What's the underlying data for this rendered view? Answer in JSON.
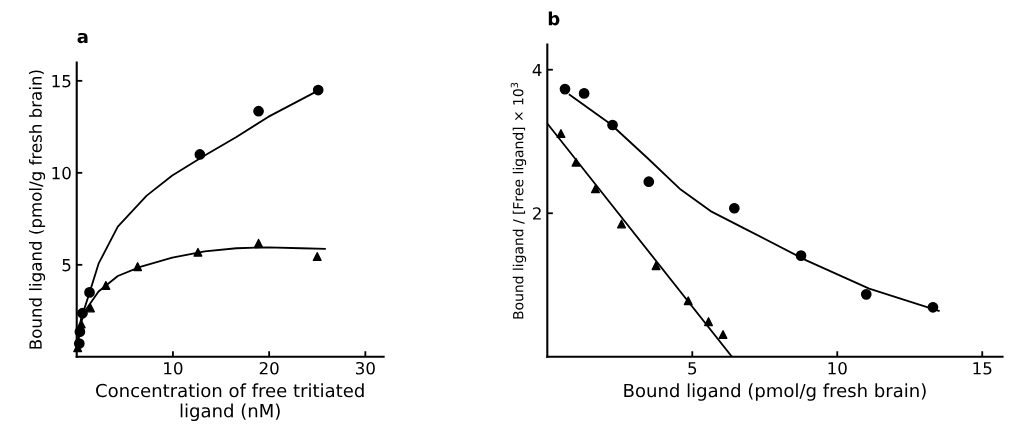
{
  "chart_data": [
    {
      "type": "scatter",
      "title": "a",
      "xlabel": "Concentration of free tritiated\nligand (nM)",
      "ylabel": "Bound ligand (pmol/g fresh brain)",
      "xlim": [
        0,
        31.9
      ],
      "ylim": [
        0,
        16
      ],
      "xticks": [
        10,
        20,
        30
      ],
      "yticks": [
        5,
        10,
        15
      ],
      "grid": false,
      "legend": false,
      "series": [
        {
          "marker": "circle",
          "color": "#000000",
          "x": [
            0.27,
            0.33,
            0.6,
            1.33,
            12.8,
            18.9,
            25.1
          ],
          "values": [
            0.72,
            1.36,
            2.37,
            3.5,
            11.0,
            13.35,
            14.5
          ]
        },
        {
          "marker": "triangle",
          "color": "#000000",
          "x": [
            0.1,
            0.47,
            1.43,
            3.03,
            6.33,
            12.6,
            18.9,
            25.0
          ],
          "values": [
            0.49,
            1.78,
            2.65,
            3.88,
            4.9,
            5.68,
            6.17,
            5.45
          ]
        },
        {
          "type": "line",
          "color": "#000000",
          "x": [
            0.1,
            0.43,
            1.27,
            2.27,
            4.27,
            7.27,
            9.93,
            13.3,
            16.6,
            19.9,
            25.1
          ],
          "values": [
            0.5,
            2.03,
            3.38,
            5.06,
            7.08,
            8.76,
            9.85,
            10.94,
            11.95,
            13.04,
            14.47
          ]
        },
        {
          "type": "line",
          "color": "#000000",
          "x": [
            0,
            0.33,
            0.93,
            2.27,
            4.27,
            6.6,
            9.93,
            13.3,
            16.6,
            19.9,
            23.3,
            25.8
          ],
          "values": [
            0.35,
            1.7,
            2.54,
            3.55,
            4.39,
            4.89,
            5.39,
            5.73,
            5.9,
            5.95,
            5.9,
            5.87
          ]
        }
      ]
    },
    {
      "type": "scatter",
      "title": "b",
      "xlabel": "Bound ligand (pmol/g fresh brain)",
      "ylabel": "Bound ligand / [Free ligand] × 10$^{3}$",
      "xlim": [
        0,
        15.7
      ],
      "ylim": [
        0,
        4.35
      ],
      "xticks": [
        5,
        10,
        15
      ],
      "yticks": [
        2,
        4
      ],
      "grid": false,
      "legend": false,
      "series": [
        {
          "marker": "circle",
          "color": "#000000",
          "x": [
            0.61,
            1.27,
            2.25,
            3.5,
            6.45,
            8.75,
            11.0,
            13.3
          ],
          "values": [
            3.73,
            3.67,
            3.23,
            2.44,
            2.07,
            1.41,
            0.87,
            0.69
          ]
        },
        {
          "marker": "triangle",
          "color": "#000000",
          "x": [
            0.47,
            0.99,
            1.66,
            2.56,
            3.75,
            4.86,
            5.56,
            6.06
          ],
          "values": [
            3.11,
            2.71,
            2.34,
            1.85,
            1.27,
            0.78,
            0.49,
            0.31
          ]
        },
        {
          "type": "line",
          "color": "#000000",
          "x": [
            0.77,
            2.19,
            3.48,
            4.6,
            5.63,
            6.79,
            8.95,
            11.1,
            13.5
          ],
          "values": [
            3.65,
            3.24,
            2.76,
            2.33,
            2.03,
            1.79,
            1.34,
            0.95,
            0.64
          ]
        },
        {
          "type": "line",
          "color": "#000000",
          "x": [
            0,
            6.37
          ],
          "values": [
            3.25,
            0
          ]
        }
      ]
    }
  ]
}
